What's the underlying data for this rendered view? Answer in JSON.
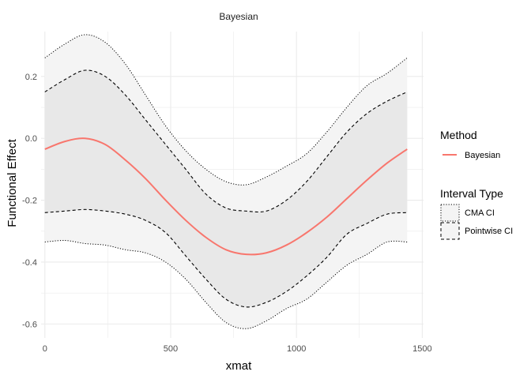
{
  "chart_data": {
    "type": "line",
    "title": "Bayesian",
    "xlabel": "xmat",
    "ylabel": "Functional Effect",
    "xlim": [
      -15,
      1505
    ],
    "ylim": [
      -0.645,
      0.345
    ],
    "xticks": [
      0,
      500,
      1000,
      1500
    ],
    "xtick_labels": [
      "0",
      "500",
      "1000",
      "1500"
    ],
    "yticks": [
      -0.6,
      -0.4,
      -0.2,
      0.0,
      0.2
    ],
    "ytick_labels": [
      "-0.6",
      "-0.4",
      "-0.2",
      "0.0",
      "0.2"
    ],
    "grid": true,
    "legend_placement": "right",
    "colors": {
      "estimate": "#f8766d",
      "cma_band": "#f4f4f4",
      "pointwise_band": "#e8e8e8",
      "grid": "#ebebeb",
      "bound_line": "#000000"
    },
    "x": [
      0,
      80,
      160,
      240,
      320,
      400,
      480,
      560,
      640,
      720,
      800,
      880,
      960,
      1040,
      1120,
      1200,
      1280,
      1360,
      1440
    ],
    "series": [
      {
        "name": "Bayesian",
        "role": "estimate",
        "values": [
          -0.035,
          -0.01,
          0.0,
          -0.02,
          -0.07,
          -0.13,
          -0.2,
          -0.265,
          -0.32,
          -0.36,
          -0.375,
          -0.37,
          -0.345,
          -0.305,
          -0.255,
          -0.195,
          -0.135,
          -0.08,
          -0.035
        ]
      },
      {
        "name": "CMA CI",
        "role": "band",
        "upper": [
          0.26,
          0.305,
          0.335,
          0.31,
          0.24,
          0.14,
          0.04,
          -0.04,
          -0.1,
          -0.14,
          -0.15,
          -0.125,
          -0.09,
          -0.05,
          0.02,
          0.1,
          0.17,
          0.21,
          0.26
        ],
        "lower": [
          -0.335,
          -0.33,
          -0.34,
          -0.345,
          -0.36,
          -0.37,
          -0.4,
          -0.455,
          -0.53,
          -0.595,
          -0.615,
          -0.59,
          -0.55,
          -0.52,
          -0.465,
          -0.41,
          -0.375,
          -0.335,
          -0.335
        ]
      },
      {
        "name": "Pointwise CI",
        "role": "band",
        "upper": [
          0.15,
          0.19,
          0.22,
          0.2,
          0.14,
          0.06,
          -0.02,
          -0.1,
          -0.18,
          -0.225,
          -0.235,
          -0.235,
          -0.2,
          -0.14,
          -0.06,
          0.02,
          0.08,
          0.12,
          0.15
        ],
        "lower": [
          -0.24,
          -0.235,
          -0.23,
          -0.235,
          -0.245,
          -0.265,
          -0.305,
          -0.38,
          -0.455,
          -0.52,
          -0.545,
          -0.53,
          -0.495,
          -0.445,
          -0.385,
          -0.31,
          -0.275,
          -0.245,
          -0.24
        ]
      }
    ],
    "legend": {
      "method_title": "Method",
      "method_items": [
        {
          "label": "Bayesian"
        }
      ],
      "interval_title": "Interval Type",
      "interval_items": [
        {
          "label": "CMA CI",
          "dash": "dotted"
        },
        {
          "label": "Pointwise CI",
          "dash": "dashed"
        }
      ]
    }
  }
}
